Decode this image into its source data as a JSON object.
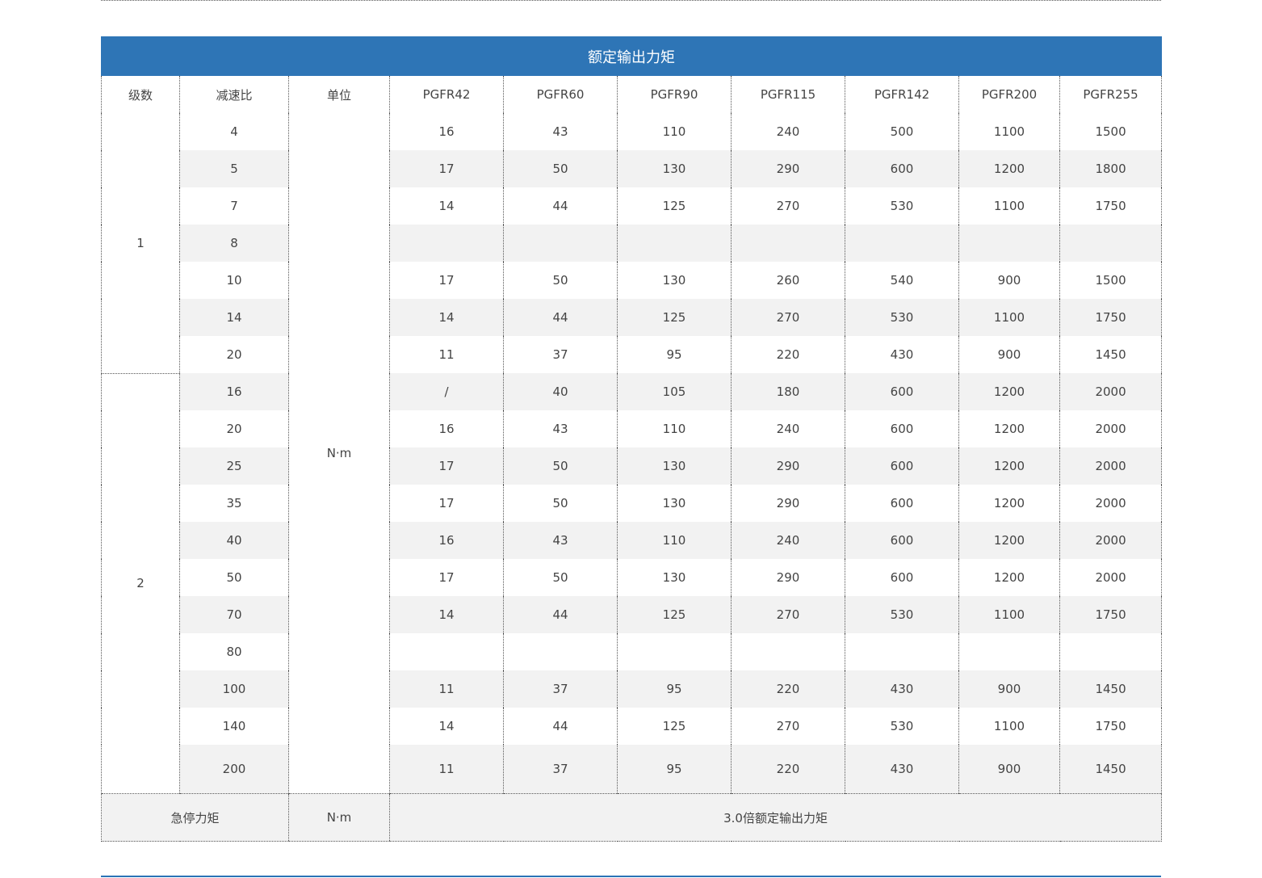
{
  "table": {
    "title": "额定输出力矩",
    "headers": [
      "级数",
      "减速比",
      "单位",
      "PGFR42",
      "PGFR60",
      "PGFR90",
      "PGFR115",
      "PGFR142",
      "PGFR200",
      "PGFR255"
    ],
    "unit": "N·m",
    "stages": [
      {
        "stage": "1",
        "rows": [
          {
            "ratio": "4",
            "values": [
              "16",
              "43",
              "110",
              "240",
              "500",
              "1100",
              "1500"
            ]
          },
          {
            "ratio": "5",
            "values": [
              "17",
              "50",
              "130",
              "290",
              "600",
              "1200",
              "1800"
            ]
          },
          {
            "ratio": "7",
            "values": [
              "14",
              "44",
              "125",
              "270",
              "530",
              "1100",
              "1750"
            ]
          },
          {
            "ratio": "8",
            "values": [
              "",
              "",
              "",
              "",
              "",
              "",
              ""
            ]
          },
          {
            "ratio": "10",
            "values": [
              "17",
              "50",
              "130",
              "260",
              "540",
              "900",
              "1500"
            ]
          },
          {
            "ratio": "14",
            "values": [
              "14",
              "44",
              "125",
              "270",
              "530",
              "1100",
              "1750"
            ]
          },
          {
            "ratio": "20",
            "values": [
              "11",
              "37",
              "95",
              "220",
              "430",
              "900",
              "1450"
            ]
          }
        ]
      },
      {
        "stage": "2",
        "rows": [
          {
            "ratio": "16",
            "values": [
              "/",
              "40",
              "105",
              "180",
              "600",
              "1200",
              "2000"
            ]
          },
          {
            "ratio": "20",
            "values": [
              "16",
              "43",
              "110",
              "240",
              "600",
              "1200",
              "2000"
            ]
          },
          {
            "ratio": "25",
            "values": [
              "17",
              "50",
              "130",
              "290",
              "600",
              "1200",
              "2000"
            ]
          },
          {
            "ratio": "35",
            "values": [
              "17",
              "50",
              "130",
              "290",
              "600",
              "1200",
              "2000"
            ]
          },
          {
            "ratio": "40",
            "values": [
              "16",
              "43",
              "110",
              "240",
              "600",
              "1200",
              "2000"
            ]
          },
          {
            "ratio": "50",
            "values": [
              "17",
              "50",
              "130",
              "290",
              "600",
              "1200",
              "2000"
            ]
          },
          {
            "ratio": "70",
            "values": [
              "14",
              "44",
              "125",
              "270",
              "530",
              "1100",
              "1750"
            ]
          },
          {
            "ratio": "80",
            "values": [
              "",
              "",
              "",
              "",
              "",
              "",
              ""
            ]
          },
          {
            "ratio": "100",
            "values": [
              "11",
              "37",
              "95",
              "220",
              "430",
              "900",
              "1450"
            ]
          },
          {
            "ratio": "140",
            "values": [
              "14",
              "44",
              "125",
              "270",
              "530",
              "1100",
              "1750"
            ]
          },
          {
            "ratio": "200",
            "values": [
              "11",
              "37",
              "95",
              "220",
              "430",
              "900",
              "1450"
            ]
          }
        ]
      }
    ],
    "footer": {
      "label": "急停力矩",
      "unit": "N·m",
      "value": "3.0倍额定输出力矩"
    }
  },
  "colors": {
    "title_bg": "#2e75b6",
    "alt_row_bg": "#f2f2f2",
    "text": "#444444"
  }
}
